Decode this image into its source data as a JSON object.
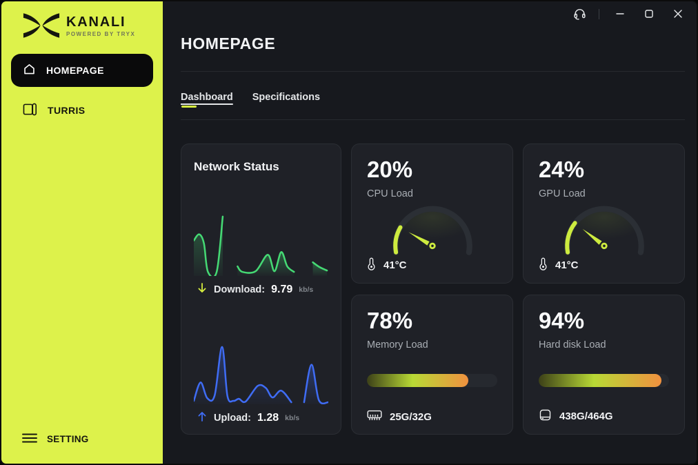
{
  "sidebar": {
    "brand": {
      "name": "KANALI",
      "tagline": "POWERED BY TRYX"
    },
    "items": [
      {
        "label": "HOMEPAGE",
        "active": true
      },
      {
        "label": "TURRIS",
        "active": false
      }
    ],
    "footer": {
      "label": "SETTING"
    }
  },
  "titlebar": {
    "icons": [
      "headset-icon",
      "minimize-icon",
      "maximize-icon",
      "close-icon"
    ]
  },
  "header": {
    "title": "HOMEPAGE"
  },
  "tabs": [
    {
      "label": "Dashboard",
      "active": true
    },
    {
      "label": "Specifications",
      "active": false
    }
  ],
  "network": {
    "title": "Network Status",
    "download": {
      "label": "Download:",
      "value": "9.79",
      "unit": "kb/s"
    },
    "upload": {
      "label": "Upload:",
      "value": "1.28",
      "unit": "kb/s"
    }
  },
  "gauges": [
    {
      "id": "cpu",
      "percent": 20,
      "percent_label": "20%",
      "label": "CPU Load",
      "temp": "41°C"
    },
    {
      "id": "gpu",
      "percent": 24,
      "percent_label": "24%",
      "label": "GPU Load",
      "temp": "41°C"
    }
  ],
  "bars": [
    {
      "id": "memory",
      "percent": 78,
      "percent_label": "78%",
      "label": "Memory Load",
      "capacity": "25G/32G"
    },
    {
      "id": "disk",
      "percent": 94,
      "percent_label": "94%",
      "label": "Hard disk Load",
      "capacity": "438G/464G"
    }
  ],
  "colors": {
    "sidebar": "#ddf24b",
    "accent": "#d7ef3f",
    "background": "#17191e",
    "card": "#1f2127",
    "gauge_ring": "#2b2f35",
    "gauge_arc": "#cdeb3f",
    "download_line": "#45d974",
    "upload_line": "#3f6cf4",
    "bar_gradient": [
      "#3c4018",
      "#b8d935",
      "#f0913f"
    ]
  },
  "chart_data": [
    {
      "type": "area",
      "series": "download",
      "unit": "kb/s",
      "current": 9.79,
      "color": "#45d974",
      "ylim": [
        0,
        92
      ],
      "segments": [
        [
          [
            0,
            40
          ],
          [
            8,
            31
          ],
          [
            15,
            44
          ],
          [
            21,
            86
          ],
          [
            34,
            86
          ],
          [
            43,
            5
          ]
        ],
        [
          [
            65,
            78
          ],
          [
            72,
            86
          ],
          [
            92,
            85
          ],
          [
            110,
            61
          ],
          [
            120,
            85
          ],
          [
            130,
            57
          ],
          [
            139,
            78
          ],
          [
            149,
            86
          ]
        ],
        [
          [
            177,
            72
          ],
          [
            187,
            79
          ],
          [
            198,
            84
          ]
        ]
      ]
    },
    {
      "type": "area",
      "series": "upload",
      "unit": "kb/s",
      "current": 1.28,
      "color": "#3f6cf4",
      "ylim": [
        0,
        92
      ],
      "segments": [
        [
          [
            0,
            87
          ],
          [
            10,
            60
          ],
          [
            20,
            83
          ],
          [
            31,
            79
          ],
          [
            42,
            8
          ],
          [
            50,
            80
          ],
          [
            59,
            87
          ],
          [
            67,
            84
          ],
          [
            77,
            88
          ],
          [
            95,
            65
          ],
          [
            107,
            68
          ],
          [
            117,
            82
          ],
          [
            130,
            72
          ],
          [
            145,
            89
          ]
        ],
        [
          [
            164,
            89
          ],
          [
            175,
            34
          ],
          [
            186,
            86
          ],
          [
            200,
            89
          ]
        ]
      ]
    }
  ]
}
